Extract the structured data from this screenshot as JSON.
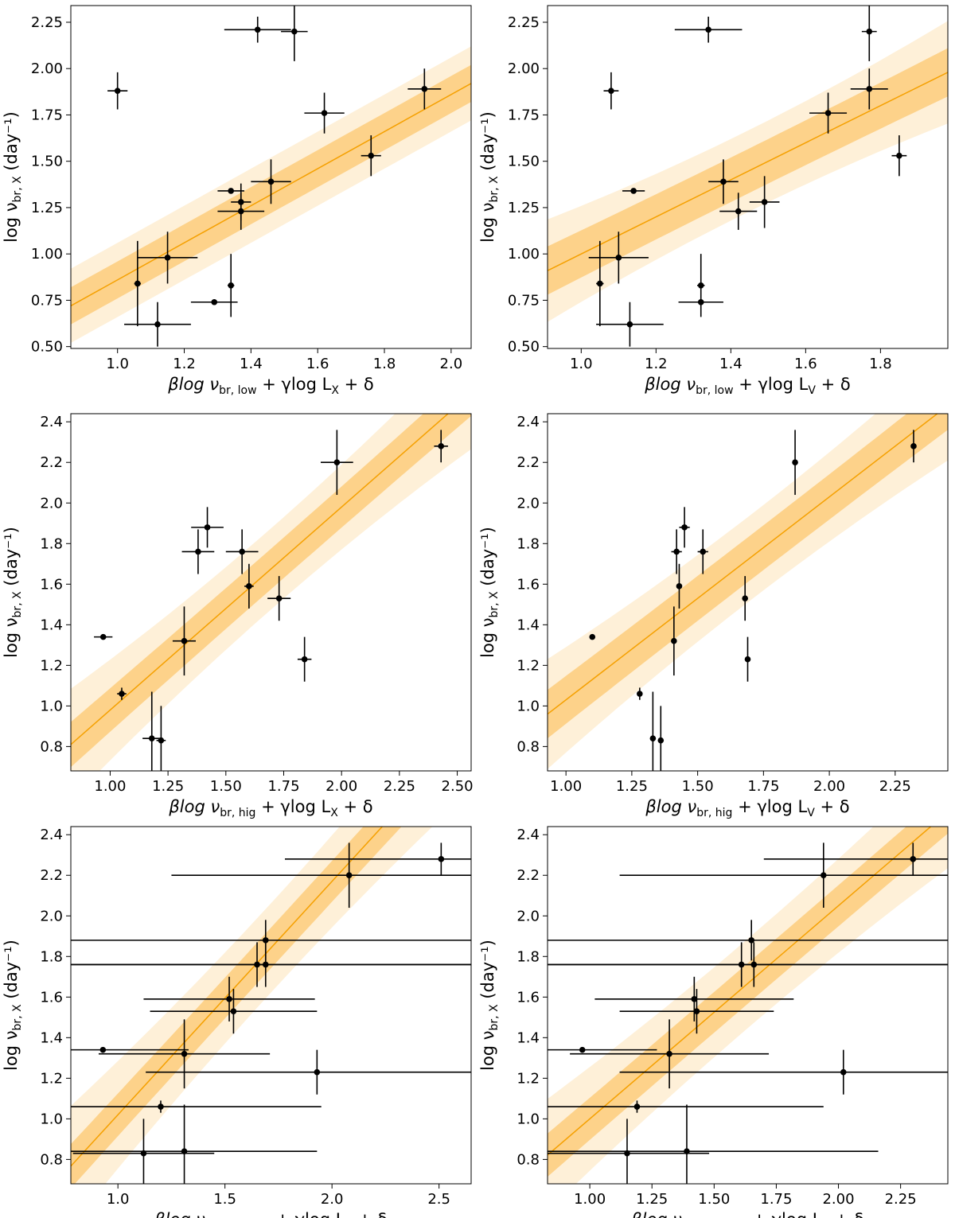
{
  "colors": {
    "line": "#f5a000",
    "band1": "#fdd28a",
    "band2": "#fef0d8",
    "points": "#000000"
  },
  "chart_data": [
    {
      "type": "scatter",
      "ylabel": {
        "main": "log ν",
        "sub": "br, X",
        "unit": "(day⁻¹)"
      },
      "xlabel": {
        "pre": "βlog ν",
        "sub": "br, low",
        "mid": " + γlog L",
        "sub2": "X",
        "post": " + δ"
      },
      "xlim": [
        0.86,
        2.06
      ],
      "ylim": [
        0.49,
        2.34
      ],
      "xticks": [
        "1.0",
        "1.2",
        "1.4",
        "1.6",
        "1.8",
        "2.0"
      ],
      "xtick_values": [
        1.0,
        1.2,
        1.4,
        1.6,
        1.8,
        2.0
      ],
      "yticks": [
        "0.50",
        "0.75",
        "1.00",
        "1.25",
        "1.50",
        "1.75",
        "2.00",
        "2.25"
      ],
      "ytick_values": [
        0.5,
        0.75,
        1.0,
        1.25,
        1.5,
        1.75,
        2.0,
        2.25
      ],
      "fit": {
        "slope": 1.0,
        "intercept": -0.14
      },
      "band1": {
        "half_width": 0.1,
        "curv": 0.0
      },
      "band2": {
        "half_width": 0.2,
        "curv": 0.0
      },
      "points": [
        {
          "x": 1.0,
          "y": 1.88,
          "xerr": 0.03,
          "yerr": 0.1
        },
        {
          "x": 1.42,
          "y": 2.21,
          "xerr": 0.1,
          "yerr": 0.07
        },
        {
          "x": 1.53,
          "y": 2.2,
          "xerr": 0.04,
          "yerr": 0.16
        },
        {
          "x": 1.92,
          "y": 1.89,
          "xerr": 0.05,
          "yerr": 0.11
        },
        {
          "x": 1.62,
          "y": 1.76,
          "xerr": 0.06,
          "yerr": 0.11
        },
        {
          "x": 1.76,
          "y": 1.53,
          "xerr": 0.03,
          "yerr": 0.11
        },
        {
          "x": 1.46,
          "y": 1.39,
          "xerr": 0.06,
          "yerr": 0.12
        },
        {
          "x": 1.34,
          "y": 1.34,
          "xerr": 0.04,
          "yerr": 0.01
        },
        {
          "x": 1.37,
          "y": 1.28,
          "xerr": 0.03,
          "yerr": 0.1
        },
        {
          "x": 1.37,
          "y": 1.23,
          "xerr": 0.07,
          "yerr": 0.1
        },
        {
          "x": 1.15,
          "y": 0.98,
          "xerr": 0.09,
          "yerr": 0.14
        },
        {
          "x": 1.06,
          "y": 0.84,
          "xerr": 0.01,
          "yerr": 0.23
        },
        {
          "x": 1.12,
          "y": 0.62,
          "xerr": 0.1,
          "yerr": 0.12
        },
        {
          "x": 1.29,
          "y": 0.74,
          "xerr": 0.07,
          "yerr": 0.01
        },
        {
          "x": 1.34,
          "y": 0.83,
          "xerr": 0.01,
          "yerr": 0.17
        }
      ]
    },
    {
      "type": "scatter",
      "ylabel": {
        "main": "log ν",
        "sub": "br, X",
        "unit": "(day⁻¹)"
      },
      "xlabel": {
        "pre": "βlog ν",
        "sub": "br, low",
        "mid": " + γlog L",
        "sub2": "V",
        "post": " + δ"
      },
      "xlim": [
        0.91,
        1.98
      ],
      "ylim": [
        0.49,
        2.34
      ],
      "xticks": [
        "1.0",
        "1.2",
        "1.4",
        "1.6",
        "1.8"
      ],
      "xtick_values": [
        1.0,
        1.2,
        1.4,
        1.6,
        1.8
      ],
      "yticks": [
        "0.50",
        "0.75",
        "1.00",
        "1.25",
        "1.50",
        "1.75",
        "2.00",
        "2.25"
      ],
      "ytick_values": [
        0.5,
        0.75,
        1.0,
        1.25,
        1.5,
        1.75,
        2.0,
        2.25
      ],
      "fit": {
        "slope": 1.0,
        "intercept": 0.0
      },
      "band1": {
        "half_width": 0.12,
        "curv": 0.3
      },
      "band2": {
        "half_width": 0.22,
        "curv": 0.9
      },
      "points": [
        {
          "x": 1.08,
          "y": 1.88,
          "xerr": 0.02,
          "yerr": 0.1
        },
        {
          "x": 1.34,
          "y": 2.21,
          "xerr": 0.09,
          "yerr": 0.07
        },
        {
          "x": 1.77,
          "y": 2.2,
          "xerr": 0.02,
          "yerr": 0.16
        },
        {
          "x": 1.77,
          "y": 1.89,
          "xerr": 0.05,
          "yerr": 0.11
        },
        {
          "x": 1.66,
          "y": 1.76,
          "xerr": 0.05,
          "yerr": 0.11
        },
        {
          "x": 1.85,
          "y": 1.53,
          "xerr": 0.02,
          "yerr": 0.11
        },
        {
          "x": 1.14,
          "y": 1.34,
          "xerr": 0.03,
          "yerr": 0.01
        },
        {
          "x": 1.38,
          "y": 1.39,
          "xerr": 0.04,
          "yerr": 0.12
        },
        {
          "x": 1.42,
          "y": 1.23,
          "xerr": 0.05,
          "yerr": 0.1
        },
        {
          "x": 1.49,
          "y": 1.28,
          "xerr": 0.04,
          "yerr": 0.14
        },
        {
          "x": 1.1,
          "y": 0.98,
          "xerr": 0.08,
          "yerr": 0.14
        },
        {
          "x": 1.05,
          "y": 0.84,
          "xerr": 0.01,
          "yerr": 0.23
        },
        {
          "x": 1.13,
          "y": 0.62,
          "xerr": 0.09,
          "yerr": 0.12
        },
        {
          "x": 1.32,
          "y": 0.74,
          "xerr": 0.06,
          "yerr": 0.01
        },
        {
          "x": 1.32,
          "y": 0.83,
          "xerr": 0.01,
          "yerr": 0.17
        }
      ]
    },
    {
      "type": "scatter",
      "ylabel": {
        "main": "log ν",
        "sub": "br, X",
        "unit": "(day⁻¹)"
      },
      "xlabel": {
        "pre": "βlog ν",
        "sub": "br, hig",
        "mid": " + γlog L",
        "sub2": "X",
        "post": " + δ"
      },
      "xlim": [
        0.83,
        2.56
      ],
      "ylim": [
        0.68,
        2.44
      ],
      "xticks": [
        "1.00",
        "1.25",
        "1.50",
        "1.75",
        "2.00",
        "2.25",
        "2.50"
      ],
      "xtick_values": [
        1.0,
        1.25,
        1.5,
        1.75,
        2.0,
        2.25,
        2.5
      ],
      "yticks": [
        "0.8",
        "1.0",
        "1.2",
        "1.4",
        "1.6",
        "1.8",
        "2.0",
        "2.2",
        "2.4"
      ],
      "ytick_values": [
        0.8,
        1.0,
        1.2,
        1.4,
        1.6,
        1.8,
        2.0,
        2.2,
        2.4
      ],
      "fit": {
        "slope": 1.0,
        "intercept": -0.02
      },
      "band1": {
        "half_width": 0.1,
        "curv": 0.15
      },
      "band2": {
        "half_width": 0.2,
        "curv": 0.5
      },
      "points": [
        {
          "x": 0.97,
          "y": 1.34,
          "xerr": 0.04,
          "yerr": 0.01
        },
        {
          "x": 1.05,
          "y": 1.06,
          "xerr": 0.02,
          "yerr": 0.03
        },
        {
          "x": 1.18,
          "y": 0.84,
          "xerr": 0.04,
          "yerr": 0.23
        },
        {
          "x": 1.22,
          "y": 0.83,
          "xerr": 0.02,
          "yerr": 0.17
        },
        {
          "x": 1.32,
          "y": 1.32,
          "xerr": 0.05,
          "yerr": 0.17
        },
        {
          "x": 1.38,
          "y": 1.76,
          "xerr": 0.07,
          "yerr": 0.11
        },
        {
          "x": 1.42,
          "y": 1.88,
          "xerr": 0.07,
          "yerr": 0.1
        },
        {
          "x": 1.57,
          "y": 1.76,
          "xerr": 0.07,
          "yerr": 0.11
        },
        {
          "x": 1.6,
          "y": 1.59,
          "xerr": 0.02,
          "yerr": 0.11
        },
        {
          "x": 1.73,
          "y": 1.53,
          "xerr": 0.05,
          "yerr": 0.11
        },
        {
          "x": 1.84,
          "y": 1.23,
          "xerr": 0.03,
          "yerr": 0.11
        },
        {
          "x": 1.98,
          "y": 2.2,
          "xerr": 0.07,
          "yerr": 0.16
        },
        {
          "x": 2.43,
          "y": 2.28,
          "xerr": 0.03,
          "yerr": 0.08
        }
      ]
    },
    {
      "type": "scatter",
      "ylabel": {
        "main": "log ν",
        "sub": "br, X",
        "unit": "(day⁻¹)"
      },
      "xlabel": {
        "pre": "βlog ν",
        "sub": "br, hig",
        "mid": " + γlog L",
        "sub2": "V",
        "post": " + δ"
      },
      "xlim": [
        0.93,
        2.45
      ],
      "ylim": [
        0.68,
        2.44
      ],
      "xticks": [
        "1.00",
        "1.25",
        "1.50",
        "1.75",
        "2.00",
        "2.25"
      ],
      "xtick_values": [
        1.0,
        1.25,
        1.5,
        1.75,
        2.0,
        2.25
      ],
      "yticks": [
        "0.8",
        "1.0",
        "1.2",
        "1.4",
        "1.6",
        "1.8",
        "2.0",
        "2.2",
        "2.4"
      ],
      "ytick_values": [
        0.8,
        1.0,
        1.2,
        1.4,
        1.6,
        1.8,
        2.0,
        2.2,
        2.4
      ],
      "fit": {
        "slope": 1.0,
        "intercept": 0.03
      },
      "band1": {
        "half_width": 0.11,
        "curv": 0.15
      },
      "band2": {
        "half_width": 0.21,
        "curv": 0.5
      },
      "points": [
        {
          "x": 1.1,
          "y": 1.34,
          "xerr": 0.01,
          "yerr": 0.01
        },
        {
          "x": 1.28,
          "y": 1.06,
          "xerr": 0.01,
          "yerr": 0.03
        },
        {
          "x": 1.33,
          "y": 0.84,
          "xerr": 0.01,
          "yerr": 0.23
        },
        {
          "x": 1.36,
          "y": 0.83,
          "xerr": 0.01,
          "yerr": 0.17
        },
        {
          "x": 1.41,
          "y": 1.32,
          "xerr": 0.01,
          "yerr": 0.17
        },
        {
          "x": 1.42,
          "y": 1.76,
          "xerr": 0.02,
          "yerr": 0.11
        },
        {
          "x": 1.45,
          "y": 1.88,
          "xerr": 0.02,
          "yerr": 0.1
        },
        {
          "x": 1.43,
          "y": 1.59,
          "xerr": 0.01,
          "yerr": 0.11
        },
        {
          "x": 1.52,
          "y": 1.76,
          "xerr": 0.02,
          "yerr": 0.11
        },
        {
          "x": 1.68,
          "y": 1.53,
          "xerr": 0.01,
          "yerr": 0.11
        },
        {
          "x": 1.69,
          "y": 1.23,
          "xerr": 0.01,
          "yerr": 0.11
        },
        {
          "x": 1.87,
          "y": 2.2,
          "xerr": 0.01,
          "yerr": 0.16
        },
        {
          "x": 2.32,
          "y": 2.28,
          "xerr": 0.01,
          "yerr": 0.08
        }
      ]
    },
    {
      "type": "scatter",
      "ylabel": {
        "main": "log ν",
        "sub": "br, X",
        "unit": "(day⁻¹)"
      },
      "xlabel": {
        "pre": "βlog ν",
        "sub": "br, hig, corr",
        "mid": " + γlog L",
        "sub2": "X",
        "post": " + δ"
      },
      "xlim": [
        0.78,
        2.65
      ],
      "ylim": [
        0.68,
        2.44
      ],
      "xticks": [
        "1.0",
        "1.5",
        "2.0",
        "2.5"
      ],
      "xtick_values": [
        1.0,
        1.5,
        2.0,
        2.5
      ],
      "yticks": [
        "0.8",
        "1.0",
        "1.2",
        "1.4",
        "1.6",
        "1.8",
        "2.0",
        "2.2",
        "2.4"
      ],
      "ytick_values": [
        0.8,
        1.0,
        1.2,
        1.4,
        1.6,
        1.8,
        2.0,
        2.2,
        2.4
      ],
      "fit": {
        "slope": 1.15,
        "intercept": -0.13
      },
      "band1": {
        "half_width": 0.1,
        "curv": 0.1
      },
      "band2": {
        "half_width": 0.22,
        "curv": 0.4
      },
      "points": [
        {
          "x": 0.93,
          "y": 1.34,
          "xerr": 0.4,
          "yerr": 0.01
        },
        {
          "x": 1.2,
          "y": 1.06,
          "xerr": 0.75,
          "yerr": 0.03
        },
        {
          "x": 1.12,
          "y": 0.83,
          "xerr": 0.33,
          "yerr": 0.17
        },
        {
          "x": 1.31,
          "y": 0.84,
          "xerr": 0.62,
          "yerr": 0.23
        },
        {
          "x": 1.31,
          "y": 1.32,
          "xerr": 0.4,
          "yerr": 0.17
        },
        {
          "x": 1.52,
          "y": 1.59,
          "xerr": 0.4,
          "yerr": 0.11
        },
        {
          "x": 1.54,
          "y": 1.53,
          "xerr": 0.39,
          "yerr": 0.11
        },
        {
          "x": 1.65,
          "y": 1.76,
          "xerr": 1.3,
          "yerr": 0.11
        },
        {
          "x": 1.69,
          "y": 1.76,
          "xerr": 1.3,
          "yerr": 0.11
        },
        {
          "x": 1.69,
          "y": 1.88,
          "xerr": 1.3,
          "yerr": 0.1
        },
        {
          "x": 1.93,
          "y": 1.23,
          "xerr": 0.8,
          "yerr": 0.11
        },
        {
          "x": 2.08,
          "y": 2.2,
          "xerr": 0.83,
          "yerr": 0.16
        },
        {
          "x": 2.51,
          "y": 2.28,
          "xerr": 0.73,
          "yerr": 0.08
        }
      ]
    },
    {
      "type": "scatter",
      "ylabel": {
        "main": "log ν",
        "sub": "br, X",
        "unit": "(day⁻¹)"
      },
      "xlabel": {
        "pre": "βlog ν",
        "sub": "br, hig, corr",
        "mid": " + γlog L",
        "sub2": "V",
        "post": " + δ"
      },
      "xlim": [
        0.83,
        2.44
      ],
      "ylim": [
        0.68,
        2.44
      ],
      "xticks": [
        "1.00",
        "1.25",
        "1.50",
        "1.75",
        "2.00",
        "2.25"
      ],
      "xtick_values": [
        1.0,
        1.25,
        1.5,
        1.75,
        2.0,
        2.25
      ],
      "yticks": [
        "0.8",
        "1.0",
        "1.2",
        "1.4",
        "1.6",
        "1.8",
        "2.0",
        "2.2",
        "2.4"
      ],
      "ytick_values": [
        0.8,
        1.0,
        1.2,
        1.4,
        1.6,
        1.8,
        2.0,
        2.2,
        2.4
      ],
      "fit": {
        "slope": 1.05,
        "intercept": -0.05
      },
      "band1": {
        "half_width": 0.1,
        "curv": 0.1
      },
      "band2": {
        "half_width": 0.22,
        "curv": 0.4
      },
      "points": [
        {
          "x": 0.97,
          "y": 1.34,
          "xerr": 0.3,
          "yerr": 0.01
        },
        {
          "x": 1.19,
          "y": 1.06,
          "xerr": 0.75,
          "yerr": 0.03
        },
        {
          "x": 1.15,
          "y": 0.83,
          "xerr": 0.33,
          "yerr": 0.17
        },
        {
          "x": 1.39,
          "y": 0.84,
          "xerr": 0.77,
          "yerr": 0.23
        },
        {
          "x": 1.32,
          "y": 1.32,
          "xerr": 0.4,
          "yerr": 0.17
        },
        {
          "x": 1.42,
          "y": 1.59,
          "xerr": 0.4,
          "yerr": 0.11
        },
        {
          "x": 1.43,
          "y": 1.53,
          "xerr": 0.31,
          "yerr": 0.11
        },
        {
          "x": 1.61,
          "y": 1.76,
          "xerr": 1.2,
          "yerr": 0.11
        },
        {
          "x": 1.66,
          "y": 1.76,
          "xerr": 1.2,
          "yerr": 0.11
        },
        {
          "x": 1.65,
          "y": 1.88,
          "xerr": 1.2,
          "yerr": 0.1
        },
        {
          "x": 2.02,
          "y": 1.23,
          "xerr": 0.9,
          "yerr": 0.11
        },
        {
          "x": 1.94,
          "y": 2.2,
          "xerr": 0.82,
          "yerr": 0.16
        },
        {
          "x": 2.3,
          "y": 2.28,
          "xerr": 0.6,
          "yerr": 0.08
        }
      ]
    }
  ]
}
